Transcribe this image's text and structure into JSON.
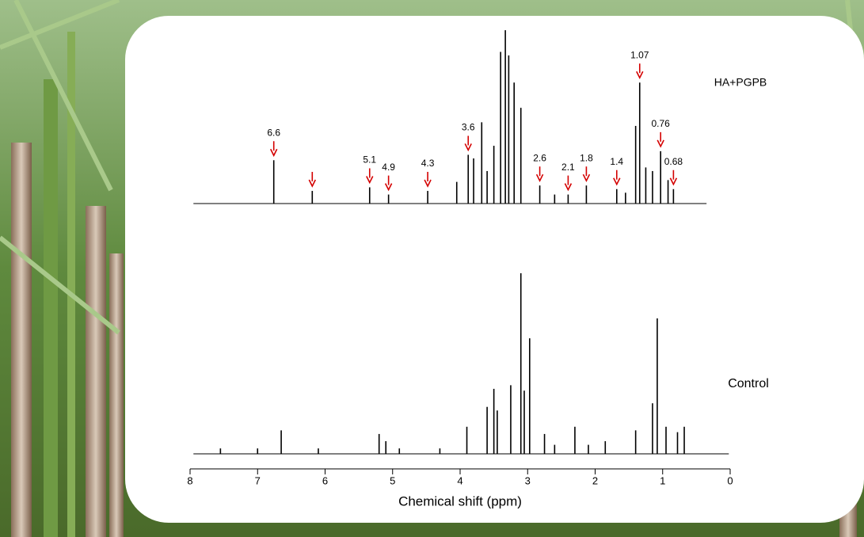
{
  "chart_data": {
    "type": "stick",
    "x_label": "Chemical shift (ppm)",
    "xlim": [
      8,
      0
    ],
    "xticks": [
      8,
      7,
      6,
      5,
      4,
      3,
      2,
      1,
      0
    ],
    "ylim": [
      0,
      100
    ],
    "series": [
      {
        "name": "HA+PGPB",
        "color": "#000000",
        "x": [
          6.76,
          6.19,
          5.34,
          5.06,
          4.48,
          4.05,
          3.88,
          3.8,
          3.68,
          3.6,
          3.5,
          3.4,
          3.33,
          3.28,
          3.2,
          3.1,
          2.82,
          2.6,
          2.4,
          2.13,
          1.68,
          1.55,
          1.4,
          1.34,
          1.25,
          1.15,
          1.03,
          0.92,
          0.84
        ],
        "values": [
          24,
          7,
          9,
          5,
          7,
          12,
          27,
          25,
          45,
          18,
          32,
          84,
          96,
          82,
          67,
          53,
          10,
          5,
          5,
          10,
          8,
          6,
          43,
          67,
          20,
          18,
          29,
          13,
          8
        ]
      },
      {
        "name": "Control",
        "color": "#000000",
        "x": [
          7.55,
          7.0,
          6.65,
          6.1,
          5.2,
          5.1,
          4.9,
          4.3,
          3.9,
          3.6,
          3.5,
          3.45,
          3.25,
          3.1,
          3.05,
          2.97,
          2.75,
          2.6,
          2.3,
          2.1,
          1.85,
          1.4,
          1.15,
          1.08,
          0.95,
          0.78,
          0.68
        ],
        "values": [
          3,
          3,
          13,
          3,
          11,
          7,
          3,
          3,
          15,
          26,
          36,
          24,
          38,
          100,
          35,
          64,
          11,
          5,
          15,
          5,
          7,
          13,
          28,
          75,
          15,
          12,
          15
        ]
      }
    ],
    "arrow_color": "#d40000",
    "arrows": [
      6.76,
      6.19,
      5.34,
      5.06,
      4.48,
      3.88,
      2.82,
      2.4,
      2.13,
      1.68,
      1.34,
      1.03,
      0.84
    ],
    "annotations": [
      {
        "text": "6.6",
        "x": 6.76
      },
      {
        "text": "5.1",
        "x": 5.34
      },
      {
        "text": "4.9",
        "x": 5.06
      },
      {
        "text": "4.3",
        "x": 4.48
      },
      {
        "text": "3.6",
        "x": 3.88
      },
      {
        "text": "2.6",
        "x": 2.82
      },
      {
        "text": "2.1",
        "x": 2.4
      },
      {
        "text": "1.8",
        "x": 2.13
      },
      {
        "text": "1.4",
        "x": 1.68
      },
      {
        "text": "1.07",
        "x": 1.34
      },
      {
        "text": "0.76",
        "x": 1.03
      },
      {
        "text": "0.68",
        "x": 0.84
      }
    ]
  }
}
